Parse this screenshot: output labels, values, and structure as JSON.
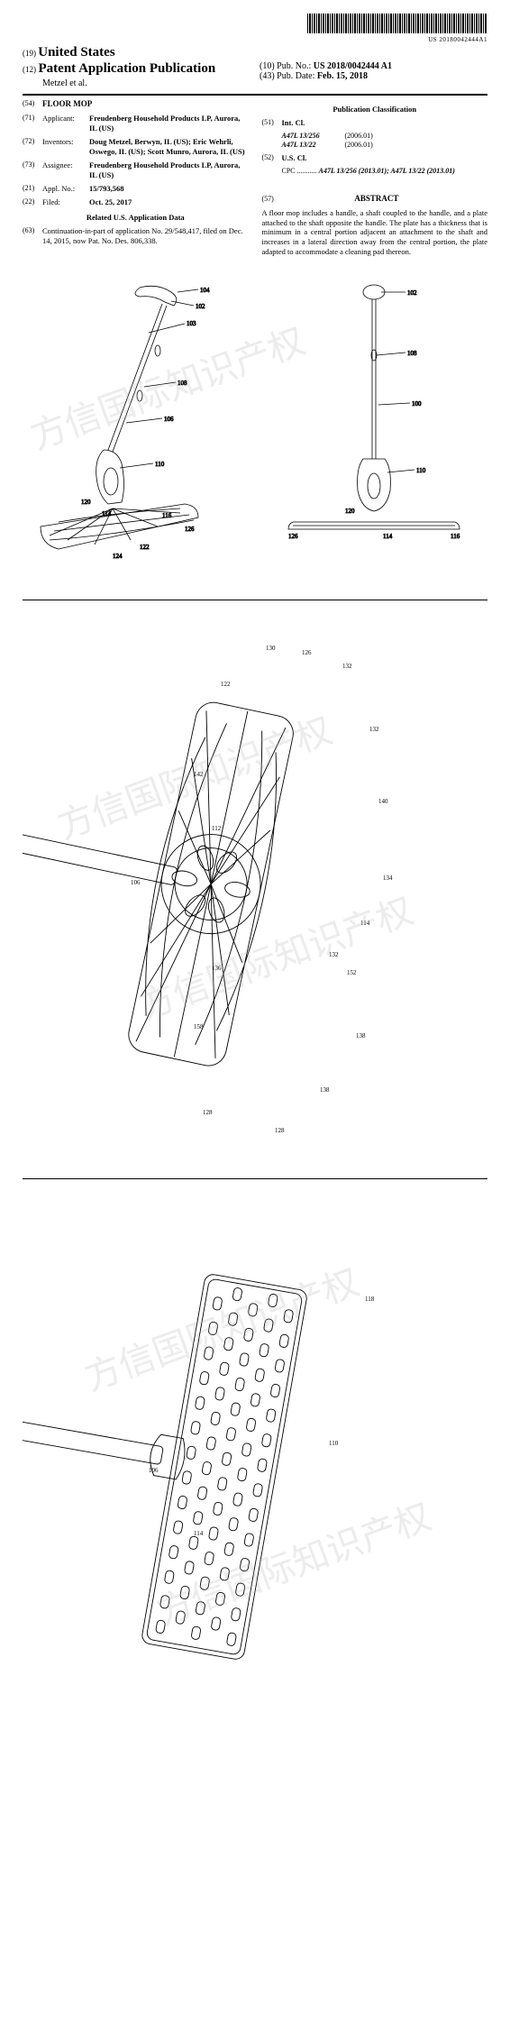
{
  "barcode_text": "US 20180042444A1",
  "header": {
    "num_country": "(19)",
    "country": "United States",
    "num_type": "(12)",
    "pub_type": "Patent Application Publication",
    "authors": "Metzel et al.",
    "pub_no_num": "(10)",
    "pub_no_label": "Pub. No.:",
    "pub_no": "US 2018/0042444 A1",
    "pub_date_num": "(43)",
    "pub_date_label": "Pub. Date:",
    "pub_date": "Feb. 15, 2018"
  },
  "left": {
    "title_num": "(54)",
    "title": "FLOOR MOP",
    "applicant_num": "(71)",
    "applicant_label": "Applicant:",
    "applicant": "Freudenberg Household Products LP, Aurora, IL (US)",
    "inventors_num": "(72)",
    "inventors_label": "Inventors:",
    "inventors": "Doug Metzel, Berwyn, IL (US); Eric Wehrli, Oswego, IL (US); Scott Munro, Aurora, IL (US)",
    "assignee_num": "(73)",
    "assignee_label": "Assignee:",
    "assignee": "Freudenberg Household Products LP, Aurora, IL (US)",
    "appl_num": "(21)",
    "appl_label": "Appl. No.:",
    "appl": "15/793,568",
    "filed_num": "(22)",
    "filed_label": "Filed:",
    "filed": "Oct. 25, 2017",
    "related_head": "Related U.S. Application Data",
    "cont_num": "(63)",
    "cont": "Continuation-in-part of application No. 29/548,417, filed on Dec. 14, 2015, now Pat. No. Des. 806,338."
  },
  "right": {
    "pubclass_head": "Publication Classification",
    "intcl_num": "(51)",
    "intcl_label": "Int. Cl.",
    "intcl": [
      {
        "code": "A47L 13/256",
        "year": "(2006.01)"
      },
      {
        "code": "A47L 13/22",
        "year": "(2006.01)"
      }
    ],
    "uscl_num": "(52)",
    "uscl_label": "U.S. Cl.",
    "cpc_label": "CPC ...........",
    "cpc": "A47L 13/256 (2013.01); A47L 13/22 (2013.01)",
    "abstract_num": "(57)",
    "abstract_head": "ABSTRACT",
    "abstract": "A floor mop includes a handle, a shaft coupled to the handle, and a plate attached to the shaft opposite the handle. The plate has a thickness that is minimum in a central portion adjacent an attachment to the shaft and increases in a lateral direction away from the central portion, the plate adapted to accommodate a cleaning pad thereon."
  },
  "watermarks": [
    "方信国际知识产权",
    "方信国际知识产权",
    "方信国际知识产权",
    "方信国际知识产权",
    "方信国际知识产权"
  ],
  "drawing_style": {
    "stroke": "#000000",
    "stroke_width": 0.8,
    "fill": "none",
    "ref_font_size": 7
  },
  "refs_fig1": [
    "104",
    "102",
    "103",
    "108",
    "106",
    "110",
    "120",
    "114",
    "116",
    "126",
    "122",
    "124"
  ],
  "refs_fig2": [
    "102",
    "108",
    "100",
    "110",
    "120",
    "126",
    "114",
    "116"
  ],
  "refs_fig3": [
    "130",
    "126",
    "132",
    "122",
    "132",
    "140",
    "142",
    "112",
    "134",
    "106",
    "114",
    "132",
    "152",
    "136",
    "138",
    "158",
    "138",
    "128",
    "128"
  ],
  "refs_fig4": [
    "118",
    "110",
    "106",
    "114"
  ]
}
